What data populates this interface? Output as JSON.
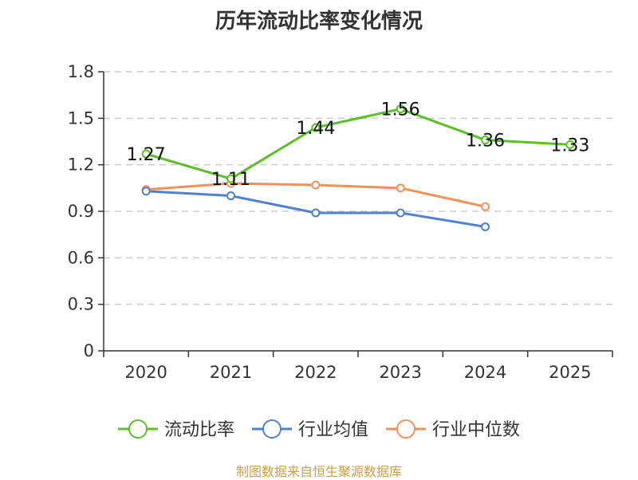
{
  "chart_data": {
    "type": "line",
    "title": "历年流动比率变化情况",
    "categories": [
      "2020",
      "2021",
      "2022",
      "2023",
      "2024",
      "2025"
    ],
    "ylim": [
      0,
      1.8
    ],
    "yticks": [
      0,
      0.3,
      0.6,
      0.9,
      1.2,
      1.5,
      1.8
    ],
    "ytick_labels": [
      "0",
      "0.3",
      "0.6",
      "0.9",
      "1.2",
      "1.5",
      "1.8"
    ],
    "grid": true,
    "legend_position": "bottom",
    "series": [
      {
        "name": "流动比率",
        "color": "#5cbf2a",
        "values": [
          1.27,
          1.11,
          1.44,
          1.56,
          1.36,
          1.33
        ],
        "labels": [
          "1.27",
          "1.11",
          "1.44",
          "1.56",
          "1.36",
          "1.33"
        ]
      },
      {
        "name": "行业均值",
        "color": "#4f80d8",
        "values": [
          1.03,
          1.0,
          0.89,
          0.89,
          0.8,
          null
        ]
      },
      {
        "name": "行业中位数",
        "color": "#f4905a",
        "values": [
          1.04,
          1.08,
          1.07,
          1.05,
          0.93,
          null
        ]
      }
    ]
  },
  "footer": {
    "source": "制图数据来自恒生聚源数据库"
  }
}
